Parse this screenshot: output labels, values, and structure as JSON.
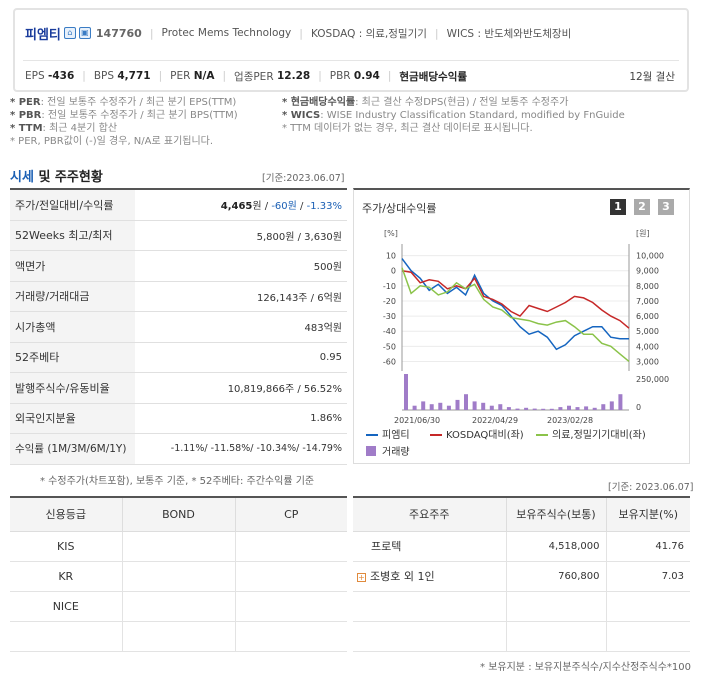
{
  "company": {
    "name": "피엠티",
    "code": "147760",
    "eng_name": "Protec Mems Technology",
    "market": "KOSDAQ : 의료,정밀기기",
    "wics": "WICS : 반도체와반도체장비"
  },
  "metrics": {
    "eps_label": "EPS",
    "eps": "-436",
    "bps_label": "BPS",
    "bps": "4,771",
    "per_label": "PER",
    "per": "N/A",
    "ind_per_label": "업종PER",
    "ind_per": "12.28",
    "pbr_label": "PBR",
    "pbr": "0.94",
    "div_label": "현금배당수익률",
    "settle": "12월 결산"
  },
  "notes": {
    "per_key": "* PER",
    "per_text": ": 전일 보통주 수정주가 / 최근 분기 EPS(TTM)",
    "pbr_key": "* PBR",
    "pbr_text": ": 전일 보통주 수정주가 / 최근 분기 BPS(TTM)",
    "ttm_key": "* TTM",
    "ttm_text": ": 최근 4분기 합산",
    "neg": "* PER, PBR값이 (-)일 경우, N/A로 표기됩니다.",
    "div_key": "* 현금배당수익률",
    "div_text": ": 최근 결산 수정DPS(현금) / 전일 보통주 수정주가",
    "wics_key": "* WICS",
    "wics_text": ": WISE Industry Classification Standard, modified by FnGuide",
    "ttm_none": "* TTM 데이터가 없는 경우, 최근 결산 데이터로 표시됩니다."
  },
  "section": {
    "title_hl": "시세",
    "title_rest": " 및 주주현황",
    "date": "[기준:2023.06.07]"
  },
  "price_table": [
    {
      "k": "주가/전일대비/수익률"
    },
    {
      "k": "52Weeks 최고/최저",
      "v": "5,800원 / 3,630원"
    },
    {
      "k": "액면가",
      "v": "500원"
    },
    {
      "k": "거래량/거래대금",
      "v": "126,143주 / 6억원"
    },
    {
      "k": "시가총액",
      "v": "483억원"
    },
    {
      "k": "52주베타",
      "v": "0.95"
    },
    {
      "k": "발행주식수/유동비율",
      "v": "10,819,866주 / 56.52%"
    },
    {
      "k": "외국인지분율",
      "v": "1.86%"
    },
    {
      "k": "수익률 (1M/3M/6M/1Y)",
      "v": "-1.11%/ -11.58%/ -10.34%/ -14.79%"
    }
  ],
  "price": {
    "value": "4,465",
    "unit": "원 / ",
    "change": "-60원",
    "sep": " / ",
    "rate": "-1.33%"
  },
  "table_note": "* 수정주가(차트포함), 보통주 기준, * 52주베타: 주간수익률 기준",
  "chart_title": "주가/상대수익률",
  "chart_pages": [
    "1",
    "2",
    "3"
  ],
  "chart_data": {
    "type": "line",
    "x_ticks": [
      "2021/06/30",
      "2022/04/29",
      "2023/02/28"
    ],
    "y_left_unit": "[%]",
    "y_left_ticks": [
      "10",
      "0",
      "-10",
      "-20",
      "-30",
      "-40",
      "-50",
      "-60"
    ],
    "y_left_range": [
      -65,
      15
    ],
    "y_right_unit": "[원]",
    "y_right_ticks": [
      "10,000",
      "9,000",
      "8,000",
      "7,000",
      "6,000",
      "5,000",
      "4,000",
      "3,000"
    ],
    "y_right_range": [
      2500,
      10500
    ],
    "vol_ticks": [
      "250,000",
      "0"
    ],
    "series": [
      {
        "name": "피엠티",
        "color": "#1565c0",
        "values": [
          8,
          0,
          -5,
          -13,
          -9,
          -15,
          -11,
          -16,
          -3,
          -15,
          -20,
          -23,
          -30,
          -37,
          -42,
          -40,
          -44,
          -52,
          -49,
          -43,
          -40,
          -37,
          -37,
          -44,
          -45,
          -45
        ]
      },
      {
        "name": "KOSDAQ대비(좌)",
        "color": "#c62828",
        "values": [
          0,
          -1,
          -8,
          -6,
          -7,
          -12,
          -10,
          -12,
          -5,
          -17,
          -19,
          -22,
          -27,
          -30,
          -23,
          -25,
          -27,
          -24,
          -21,
          -17,
          -18,
          -21,
          -26,
          -30,
          -33,
          -38
        ]
      },
      {
        "name": "의료,정밀기기대비(좌)",
        "color": "#8bc34a",
        "values": [
          2,
          -15,
          -10,
          -11,
          -16,
          -14,
          -8,
          -12,
          -9,
          -19,
          -24,
          -26,
          -31,
          -32,
          -33,
          -35,
          -36,
          -34,
          -33,
          -37,
          -42,
          -42,
          -48,
          -50,
          -55,
          -60
        ]
      }
    ],
    "volume": {
      "name": "거래량",
      "color": "#a07cc8",
      "values": [
        250000,
        30000,
        60000,
        40000,
        50000,
        30000,
        70000,
        110000,
        60000,
        50000,
        30000,
        40000,
        20000,
        10000,
        15000,
        10000,
        8000,
        8000,
        20000,
        30000,
        20000,
        25000,
        15000,
        40000,
        60000,
        110000
      ]
    }
  },
  "date2": "[기준: 2023.06.07]",
  "bond_table": {
    "headers": [
      "신용등급",
      "BOND",
      "CP"
    ],
    "rows": [
      [
        "KIS",
        "",
        ""
      ],
      [
        "KR",
        "",
        ""
      ],
      [
        "NICE",
        "",
        ""
      ],
      [
        "",
        "",
        ""
      ]
    ]
  },
  "holder_table": {
    "headers": [
      "주요주주",
      "보유주식수(보통)",
      "보유지분(%)"
    ],
    "rows": [
      [
        "프로텍",
        "4,518,000",
        "41.76"
      ],
      [
        "조병호 외 1인",
        "760,800",
        "7.03"
      ],
      [
        "",
        "",
        ""
      ],
      [
        "",
        "",
        ""
      ]
    ]
  },
  "footnote": "* 보유지분 : 보유지분주식수/지수산정주식수*100"
}
